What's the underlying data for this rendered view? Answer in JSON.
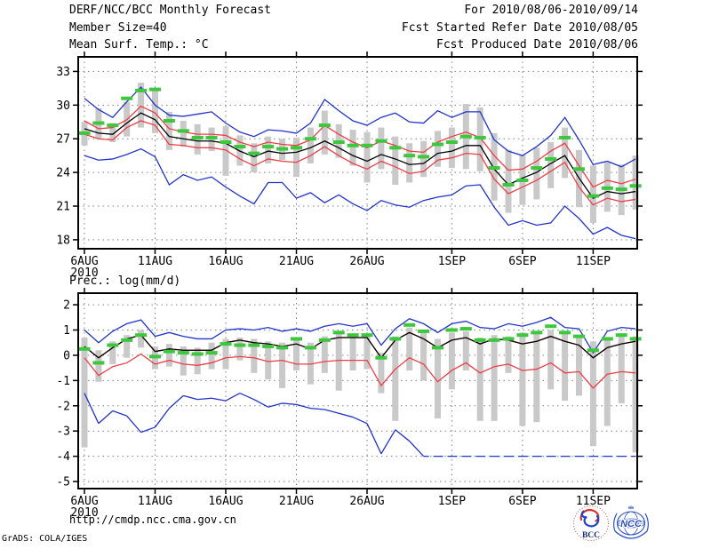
{
  "header": {
    "title": "DERF/NCC/BCC Monthly Forecast",
    "member_size": "Member Size=40",
    "for_range": "For 2010/08/06-2010/09/14",
    "fcst_started_refer_date": "Fcst Started Refer Date 2010/08/05",
    "fcst_produced_date": "Fcst Produced Date 2010/08/06"
  },
  "footer": {
    "url": "http://cmdp.ncc.cma.gov.cn",
    "credit": "GrADS: COLA/IGES",
    "bcc_logo_label": "BCC",
    "ncc_logo_label": "NCC"
  },
  "colors": {
    "blue": "#2233cc",
    "red": "#f03c46",
    "green": "#3cc83c",
    "black": "#000000",
    "bar": "#c9c9c9",
    "grid": "#808080"
  },
  "chart_data": [
    {
      "id": "surface-temperature",
      "type": "line",
      "title": "Mean Surf. Temp.: °C",
      "n_days": 40,
      "start_date": "6AUG",
      "year_label": "2010",
      "ylim": [
        17.2,
        34.3
      ],
      "yticks": [
        18,
        21,
        24,
        27,
        30,
        33
      ],
      "x_ticks": [
        {
          "day": 0,
          "label": "6AUG"
        },
        {
          "day": 5,
          "label": "11AUG"
        },
        {
          "day": 10,
          "label": "16AUG"
        },
        {
          "day": 15,
          "label": "21AUG"
        },
        {
          "day": 20,
          "label": "26AUG"
        },
        {
          "day": 26,
          "label": "1SEP"
        },
        {
          "day": 31,
          "label": "6SEP"
        },
        {
          "day": 36,
          "label": "11SEP"
        }
      ],
      "series": [
        {
          "name": "ensemble-max",
          "color_key": "blue",
          "values": [
            30.6,
            29.6,
            28.9,
            30.3,
            31.6,
            30.0,
            29.1,
            29.0,
            29.2,
            29.4,
            28.4,
            27.6,
            27.2,
            27.8,
            27.7,
            27.5,
            28.4,
            30.5,
            29.5,
            28.6,
            28.2,
            28.9,
            29.3,
            28.5,
            28.4,
            29.5,
            28.9,
            29.4,
            29.4,
            26.9,
            25.9,
            25.5,
            26.3,
            27.3,
            28.9,
            26.9,
            24.7,
            25.0,
            24.5,
            25.2
          ]
        },
        {
          "name": "upper-spread",
          "color_key": "red",
          "values": [
            28.6,
            27.9,
            28.0,
            28.7,
            29.9,
            29.3,
            27.9,
            27.6,
            27.4,
            27.4,
            27.3,
            26.7,
            26.3,
            26.7,
            26.5,
            26.4,
            26.9,
            28.2,
            27.4,
            26.7,
            26.2,
            26.8,
            26.4,
            25.9,
            25.8,
            26.7,
            27.2,
            27.6,
            27.1,
            25.5,
            24.2,
            24.3,
            25.0,
            25.9,
            26.6,
            24.6,
            22.7,
            23.3,
            23.0,
            23.4
          ]
        },
        {
          "name": "lower-spread",
          "color_key": "red",
          "values": [
            27.4,
            27.0,
            26.9,
            28.0,
            28.6,
            28.2,
            26.5,
            26.4,
            26.2,
            26.2,
            26.0,
            25.2,
            24.6,
            25.2,
            25.0,
            24.9,
            25.5,
            26.3,
            25.5,
            24.8,
            24.3,
            25.0,
            24.5,
            23.9,
            24.1,
            25.1,
            25.3,
            25.7,
            25.6,
            23.4,
            22.1,
            22.7,
            23.3,
            24.1,
            24.9,
            22.7,
            21.1,
            21.7,
            21.4,
            21.6
          ]
        },
        {
          "name": "ensemble-min",
          "color_key": "blue",
          "values": [
            25.5,
            25.1,
            25.2,
            25.6,
            26.1,
            25.4,
            22.9,
            23.8,
            23.3,
            23.6,
            22.7,
            21.9,
            21.2,
            23.1,
            23.1,
            21.7,
            22.2,
            21.3,
            22.0,
            21.2,
            20.6,
            21.5,
            21.1,
            20.9,
            21.5,
            21.8,
            22.0,
            22.8,
            22.9,
            20.9,
            19.3,
            19.7,
            19.3,
            19.5,
            21.0,
            19.9,
            18.5,
            19.1,
            18.4,
            18.1
          ]
        },
        {
          "name": "ensemble-median",
          "color_key": "black",
          "values": [
            27.9,
            27.5,
            27.4,
            28.4,
            29.3,
            28.7,
            27.2,
            27.0,
            26.8,
            26.8,
            26.6,
            25.9,
            25.4,
            25.9,
            25.7,
            25.8,
            26.2,
            26.8,
            26.2,
            25.5,
            25.0,
            25.6,
            25.2,
            24.7,
            24.8,
            25.7,
            25.9,
            26.4,
            26.4,
            24.3,
            22.9,
            23.5,
            24.0,
            24.8,
            25.5,
            23.5,
            21.7,
            22.3,
            22.1,
            22.3
          ]
        }
      ],
      "green_dashes": {
        "name": "ensemble-mean-marks",
        "color_key": "green",
        "values": [
          27.5,
          28.4,
          28.2,
          30.6,
          31.3,
          31.4,
          28.6,
          27.7,
          27.1,
          27.1,
          26.7,
          26.3,
          25.7,
          26.3,
          26.1,
          26.2,
          27.0,
          28.2,
          26.7,
          26.4,
          26.4,
          26.8,
          26.2,
          25.5,
          25.4,
          26.5,
          26.7,
          27.2,
          27.1,
          24.4,
          22.9,
          23.3,
          24.4,
          25.2,
          27.1,
          24.3,
          21.9,
          22.6,
          22.5,
          22.8
        ]
      },
      "spread_bars": {
        "color_key": "bar",
        "high": [
          28.5,
          29.7,
          28.4,
          30.3,
          32.0,
          31.3,
          29.4,
          28.6,
          28.3,
          28.0,
          28.1,
          27.3,
          26.6,
          27.2,
          27.0,
          27.1,
          28.0,
          29.5,
          28.3,
          27.8,
          27.6,
          28.0,
          27.2,
          26.6,
          26.8,
          27.7,
          28.0,
          30.1,
          29.8,
          27.5,
          26.0,
          25.6,
          26.2,
          26.7,
          28.0,
          26.0,
          24.6,
          24.9,
          24.7,
          25.5
        ],
        "low": [
          26.4,
          27.0,
          26.7,
          27.2,
          28.0,
          27.5,
          26.0,
          26.3,
          25.6,
          25.9,
          23.7,
          24.6,
          24.0,
          24.8,
          25.1,
          23.6,
          24.8,
          25.6,
          25.3,
          24.6,
          23.1,
          24.3,
          22.9,
          23.1,
          23.6,
          24.5,
          24.4,
          24.3,
          24.1,
          21.5,
          20.4,
          21.1,
          21.6,
          22.6,
          23.5,
          20.9,
          19.5,
          20.5,
          20.2,
          20.7
        ]
      }
    },
    {
      "id": "precipitation",
      "type": "line",
      "title": "Prec.: log(mm/d)",
      "n_days": 40,
      "start_date": "6AUG",
      "year_label": "2010",
      "ylim": [
        -5.28,
        2.46
      ],
      "yticks": [
        2,
        1,
        0,
        -1,
        -2,
        -3,
        -4,
        -5
      ],
      "x_ticks": [
        {
          "day": 0,
          "label": "6AUG"
        },
        {
          "day": 5,
          "label": "11AUG"
        },
        {
          "day": 10,
          "label": "16AUG"
        },
        {
          "day": 15,
          "label": "21AUG"
        },
        {
          "day": 20,
          "label": "26AUG"
        },
        {
          "day": 26,
          "label": "1SEP"
        },
        {
          "day": 31,
          "label": "6SEP"
        },
        {
          "day": 36,
          "label": "11SEP"
        }
      ],
      "series": [
        {
          "name": "ensemble-max",
          "color_key": "blue",
          "values": [
            1.0,
            0.5,
            0.95,
            1.25,
            1.4,
            0.75,
            0.9,
            0.75,
            0.65,
            0.65,
            1.0,
            1.05,
            1.0,
            1.1,
            0.95,
            1.05,
            0.95,
            1.15,
            1.25,
            1.15,
            1.25,
            0.4,
            1.05,
            1.45,
            1.25,
            0.9,
            1.25,
            1.35,
            1.1,
            1.05,
            1.25,
            1.15,
            1.3,
            1.5,
            1.1,
            1.05,
            0.1,
            0.95,
            1.1,
            1.05
          ]
        },
        {
          "name": "upper-spread",
          "color_key": "red",
          "values": [
            0.35,
            -0.1,
            0.3,
            0.65,
            0.8,
            0.15,
            0.25,
            0.2,
            0.2,
            0.2,
            0.5,
            0.6,
            0.5,
            0.45,
            0.35,
            0.45,
            0.25,
            0.6,
            0.7,
            0.7,
            0.7,
            -0.1,
            0.6,
            0.9,
            0.65,
            0.3,
            0.6,
            0.7,
            0.45,
            0.65,
            0.6,
            0.45,
            0.55,
            0.75,
            0.55,
            0.4,
            -0.1,
            0.3,
            0.45,
            0.55
          ]
        },
        {
          "name": "lower-spread",
          "color_key": "red",
          "values": [
            -0.1,
            -0.8,
            -0.45,
            -0.3,
            0.05,
            -0.35,
            -0.2,
            -0.35,
            -0.4,
            -0.3,
            -0.1,
            -0.05,
            -0.1,
            -0.25,
            -0.2,
            -0.35,
            -0.35,
            -0.25,
            -0.2,
            -0.2,
            -0.2,
            -1.2,
            -0.55,
            -0.1,
            -0.35,
            -1.05,
            -0.6,
            -0.3,
            -0.7,
            -0.45,
            -0.35,
            -0.6,
            -0.55,
            -0.3,
            -0.7,
            -0.65,
            -1.3,
            -0.75,
            -0.65,
            -0.7
          ]
        },
        {
          "name": "ensemble-min",
          "color_key": "blue",
          "clip_min": -4.0,
          "values": [
            -1.5,
            -2.7,
            -2.2,
            -2.4,
            -3.05,
            -2.85,
            -2.1,
            -1.6,
            -1.75,
            -1.7,
            -1.8,
            -1.5,
            -1.75,
            -2.05,
            -1.9,
            -1.95,
            -2.1,
            -2.15,
            -2.3,
            -2.45,
            -2.7,
            -3.9,
            -2.95,
            -3.4,
            -4.0,
            -4.0,
            -4.0,
            -4.0,
            -4.0,
            -4.0,
            -4.0,
            -4.0,
            -4.0,
            -4.0,
            -4.0,
            -4.0,
            -4.0,
            -4.0,
            -4.0,
            -4.0
          ]
        },
        {
          "name": "ensemble-median",
          "color_key": "black",
          "values": [
            0.35,
            -0.1,
            0.3,
            0.65,
            0.8,
            0.15,
            0.25,
            0.2,
            0.2,
            0.2,
            0.5,
            0.6,
            0.5,
            0.45,
            0.35,
            0.45,
            0.25,
            0.6,
            0.7,
            0.7,
            0.7,
            -0.1,
            0.6,
            0.9,
            0.65,
            0.3,
            0.6,
            0.7,
            0.45,
            0.65,
            0.6,
            0.45,
            0.55,
            0.75,
            0.55,
            0.4,
            -0.1,
            0.3,
            0.45,
            0.55
          ]
        }
      ],
      "green_dashes": {
        "name": "ensemble-mean-marks",
        "color_key": "green",
        "values": [
          0.25,
          -0.3,
          0.4,
          0.6,
          0.8,
          -0.05,
          0.15,
          0.1,
          0.05,
          0.1,
          0.45,
          0.4,
          0.4,
          0.35,
          0.3,
          0.65,
          0.3,
          0.6,
          0.9,
          0.8,
          0.8,
          -0.1,
          0.65,
          1.2,
          0.95,
          0.3,
          1.0,
          1.05,
          0.6,
          0.6,
          0.65,
          0.8,
          0.9,
          1.15,
          0.9,
          0.75,
          0.2,
          0.65,
          0.8,
          0.65
        ]
      },
      "spread_bars": {
        "color_key": "bar",
        "high": [
          0.7,
          0.2,
          0.55,
          0.8,
          1.0,
          0.35,
          0.45,
          0.35,
          0.3,
          0.5,
          0.65,
          0.7,
          0.65,
          0.55,
          0.5,
          0.7,
          0.5,
          0.75,
          0.9,
          0.85,
          0.85,
          0.1,
          0.75,
          1.1,
          0.9,
          0.65,
          0.9,
          0.95,
          0.7,
          0.8,
          0.75,
          0.9,
          0.85,
          1.0,
          0.85,
          0.75,
          0.55,
          0.7,
          0.8,
          0.75
        ],
        "low": [
          -3.65,
          -1.05,
          -0.35,
          -0.1,
          0.3,
          -0.55,
          -0.45,
          -0.8,
          -0.75,
          -0.55,
          -0.55,
          -0.2,
          -0.7,
          -0.95,
          -1.3,
          -0.6,
          -1.15,
          -0.7,
          -1.4,
          -0.6,
          -0.55,
          -1.5,
          -2.6,
          -0.6,
          -1.0,
          -2.5,
          -1.35,
          -0.6,
          -2.6,
          -2.6,
          -0.7,
          -2.8,
          -2.65,
          -1.35,
          -1.8,
          -1.6,
          -3.6,
          -2.8,
          -1.9,
          -3.85
        ]
      }
    }
  ]
}
